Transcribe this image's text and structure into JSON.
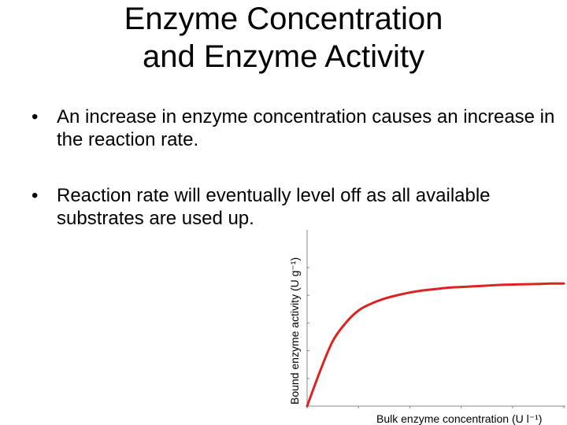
{
  "title": {
    "line1": "Enzyme Concentration",
    "line2": "and Enzyme Activity"
  },
  "bullets": [
    {
      "symbol": "•",
      "text": "An increase in enzyme concentration causes an increase in the reaction rate."
    },
    {
      "symbol": "•",
      "text": "Reaction rate will eventually level off as all available substrates are used up."
    }
  ],
  "colors": {
    "curve": "#dd2222",
    "axis": "#888888",
    "text": "#000000"
  },
  "chart_data": {
    "type": "line",
    "title": "",
    "xlabel": "Bulk enzyme concentration (U l⁻¹)",
    "ylabel": "Bound enzyme activity (U g⁻¹)",
    "xlim": [
      0,
      10
    ],
    "ylim": [
      0,
      10
    ],
    "grid": false,
    "series": [
      {
        "x": [
          0,
          0.5,
          1,
          1.5,
          2,
          2.5,
          3,
          3.5,
          4,
          4.5,
          5,
          5.5,
          6,
          6.5,
          7,
          7.5,
          8,
          8.5,
          9,
          9.5,
          10
        ],
        "values": [
          0,
          2.5,
          4.7,
          6.0,
          6.9,
          7.4,
          7.75,
          8.0,
          8.2,
          8.35,
          8.45,
          8.55,
          8.6,
          8.65,
          8.7,
          8.75,
          8.78,
          8.8,
          8.82,
          8.85,
          8.85
        ]
      }
    ]
  }
}
